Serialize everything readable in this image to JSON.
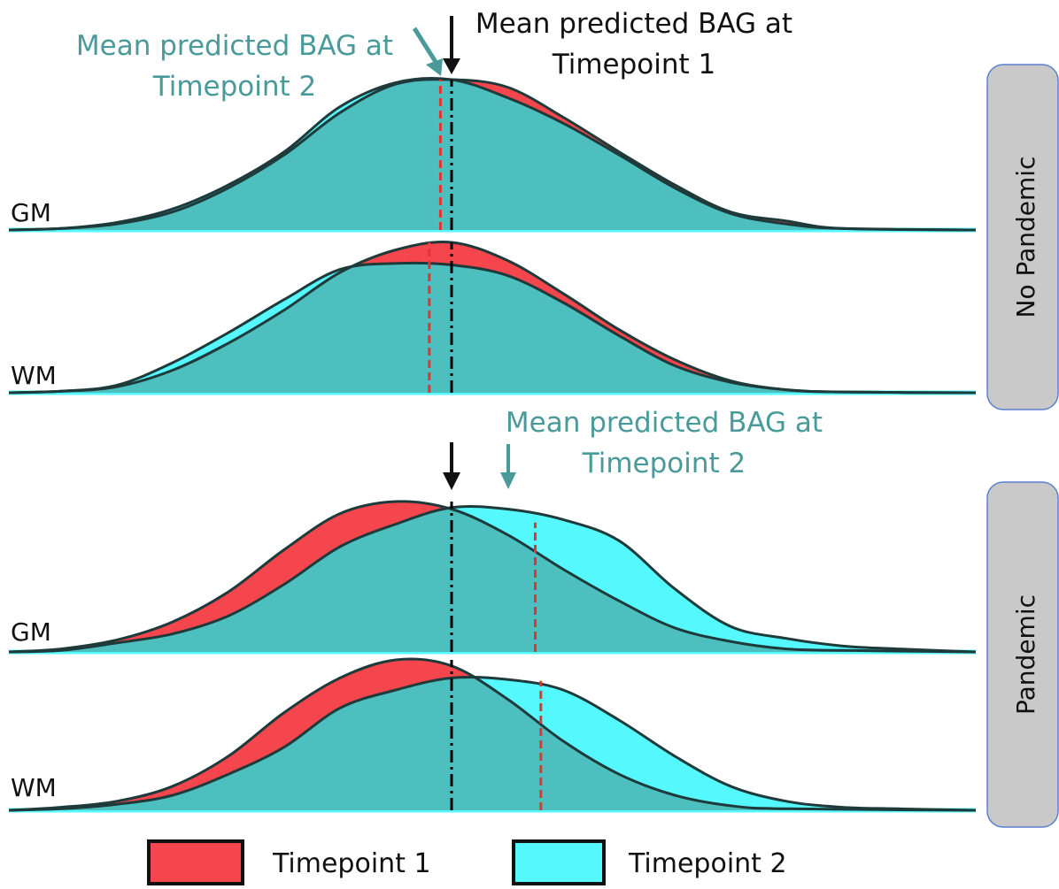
{
  "chart_data": {
    "type": "area",
    "xlabel": "",
    "ylabel": "",
    "grid": false,
    "legend_position": "bottom",
    "colors": {
      "timepoint1": "#f4464c",
      "timepoint2": "#55f9fd",
      "overlap": "#4dbfbf",
      "mean_tp1_line": "#000000",
      "mean_tp2_line": "#e8322f",
      "teal_text": "#4a9a9a"
    },
    "series_names": [
      "Timepoint 1",
      "Timepoint 2"
    ],
    "annotations": {
      "no_pandemic_tp2": "Mean predicted BAG at\nTimepoint 2",
      "no_pandemic_tp1": "Mean predicted BAG at\nTimepoint 1",
      "pandemic_tp2": "Mean predicted BAG at\nTimepoint 2"
    },
    "facets": [
      {
        "name": "No Pandemic",
        "panels": [
          {
            "label": "GM",
            "mean_tp1": 0,
            "mean_tp2": -0.2,
            "timepoint1": [
              [
                -10,
                0
              ],
              [
                -7,
                0.01
              ],
              [
                -6,
                0.04
              ],
              [
                -5,
                0.12
              ],
              [
                -4,
                0.28
              ],
              [
                -3,
                0.5
              ],
              [
                -2,
                0.78
              ],
              [
                -1,
                0.97
              ],
              [
                0,
                1.0
              ],
              [
                1,
                0.95
              ],
              [
                2,
                0.75
              ],
              [
                3,
                0.52
              ],
              [
                4,
                0.3
              ],
              [
                5,
                0.12
              ],
              [
                6,
                0.06
              ],
              [
                7,
                0.01
              ],
              [
                10,
                0
              ]
            ],
            "timepoint2": [
              [
                -10,
                0
              ],
              [
                -7,
                0.01
              ],
              [
                -6,
                0.05
              ],
              [
                -5,
                0.14
              ],
              [
                -4,
                0.3
              ],
              [
                -3,
                0.52
              ],
              [
                -2,
                0.82
              ],
              [
                -1,
                0.98
              ],
              [
                0,
                1.0
              ],
              [
                1,
                0.88
              ],
              [
                2,
                0.71
              ],
              [
                3,
                0.5
              ],
              [
                4,
                0.28
              ],
              [
                5,
                0.11
              ],
              [
                6,
                0.04
              ],
              [
                7,
                0.01
              ],
              [
                10,
                0
              ]
            ]
          },
          {
            "label": "WM",
            "mean_tp1": 0,
            "mean_tp2": -0.4,
            "timepoint1": [
              [
                -10,
                0
              ],
              [
                -7,
                0.01
              ],
              [
                -6,
                0.04
              ],
              [
                -5,
                0.15
              ],
              [
                -4,
                0.33
              ],
              [
                -3,
                0.55
              ],
              [
                -2,
                0.8
              ],
              [
                -1,
                0.95
              ],
              [
                0,
                1.0
              ],
              [
                1,
                0.88
              ],
              [
                2,
                0.66
              ],
              [
                3,
                0.42
              ],
              [
                4,
                0.22
              ],
              [
                5,
                0.08
              ],
              [
                6,
                0.02
              ],
              [
                7,
                0.005
              ],
              [
                10,
                0
              ]
            ],
            "timepoint2": [
              [
                -10,
                0
              ],
              [
                -7,
                0.01
              ],
              [
                -6,
                0.05
              ],
              [
                -5,
                0.2
              ],
              [
                -4,
                0.4
              ],
              [
                -3,
                0.62
              ],
              [
                -2,
                0.82
              ],
              [
                -1,
                0.86
              ],
              [
                0,
                0.85
              ],
              [
                1,
                0.78
              ],
              [
                2,
                0.6
              ],
              [
                3,
                0.38
              ],
              [
                4,
                0.18
              ],
              [
                5,
                0.07
              ],
              [
                6,
                0.02
              ],
              [
                7,
                0.005
              ],
              [
                10,
                0
              ]
            ]
          }
        ]
      },
      {
        "name": "Pandemic",
        "panels": [
          {
            "label": "GM",
            "mean_tp1": 0,
            "mean_tp2": 1.5,
            "timepoint1": [
              [
                -10,
                0
              ],
              [
                -7,
                0.02
              ],
              [
                -6,
                0.08
              ],
              [
                -5,
                0.2
              ],
              [
                -4,
                0.4
              ],
              [
                -3,
                0.68
              ],
              [
                -2,
                0.92
              ],
              [
                -1,
                1.0
              ],
              [
                0,
                0.95
              ],
              [
                1,
                0.78
              ],
              [
                2,
                0.55
              ],
              [
                3,
                0.34
              ],
              [
                4,
                0.16
              ],
              [
                5,
                0.07
              ],
              [
                6,
                0.02
              ],
              [
                7,
                0.01
              ],
              [
                10,
                0
              ]
            ],
            "timepoint2": [
              [
                -10,
                0
              ],
              [
                -7,
                0.01
              ],
              [
                -6,
                0.06
              ],
              [
                -5,
                0.12
              ],
              [
                -4,
                0.24
              ],
              [
                -3,
                0.45
              ],
              [
                -2,
                0.7
              ],
              [
                -1,
                0.85
              ],
              [
                0,
                0.96
              ],
              [
                1,
                0.95
              ],
              [
                2,
                0.88
              ],
              [
                3,
                0.74
              ],
              [
                4,
                0.42
              ],
              [
                5,
                0.17
              ],
              [
                6,
                0.09
              ],
              [
                7,
                0.04
              ],
              [
                8,
                0.02
              ],
              [
                10,
                0
              ]
            ]
          },
          {
            "label": "WM",
            "mean_tp1": 0,
            "mean_tp2": 1.6,
            "timepoint1": [
              [
                -10,
                0
              ],
              [
                -7,
                0.02
              ],
              [
                -6,
                0.06
              ],
              [
                -5,
                0.16
              ],
              [
                -4,
                0.36
              ],
              [
                -3,
                0.65
              ],
              [
                -2,
                0.88
              ],
              [
                -1,
                1.0
              ],
              [
                0,
                0.96
              ],
              [
                1,
                0.74
              ],
              [
                2,
                0.46
              ],
              [
                3,
                0.24
              ],
              [
                4,
                0.1
              ],
              [
                5,
                0.03
              ],
              [
                6,
                0.01
              ],
              [
                10,
                0
              ]
            ],
            "timepoint2": [
              [
                -10,
                0
              ],
              [
                -7,
                0.01
              ],
              [
                -6,
                0.04
              ],
              [
                -5,
                0.1
              ],
              [
                -4,
                0.24
              ],
              [
                -3,
                0.42
              ],
              [
                -2,
                0.68
              ],
              [
                -1,
                0.8
              ],
              [
                0,
                0.88
              ],
              [
                1,
                0.87
              ],
              [
                2,
                0.8
              ],
              [
                3,
                0.6
              ],
              [
                4,
                0.36
              ],
              [
                5,
                0.16
              ],
              [
                6,
                0.06
              ],
              [
                7,
                0.02
              ],
              [
                8,
                0.01
              ],
              [
                10,
                0
              ]
            ]
          }
        ]
      }
    ]
  },
  "legend": {
    "items": [
      {
        "label": "Timepoint 1",
        "color": "#f4464c"
      },
      {
        "label": "Timepoint 2",
        "color": "#55f9fd"
      }
    ]
  }
}
